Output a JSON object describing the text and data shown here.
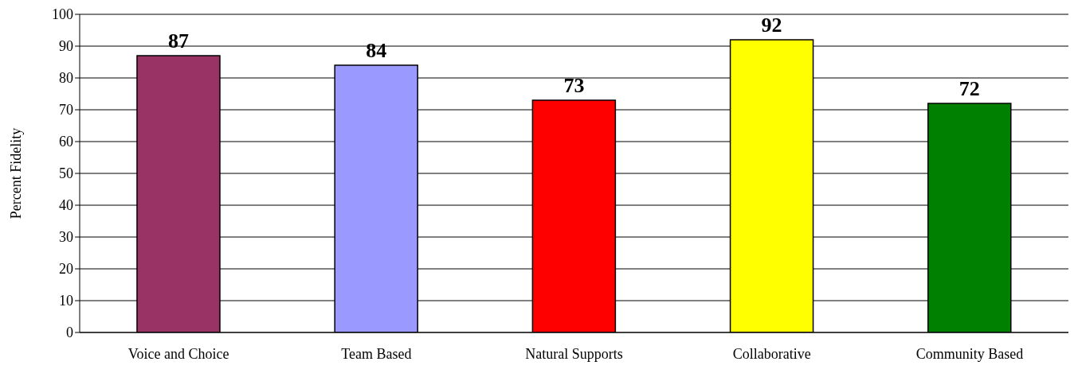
{
  "chart_data": {
    "type": "bar",
    "ylabel": "Percent Fidelity",
    "categories": [
      "Voice and Choice",
      "Team Based",
      "Natural Supports",
      "Collaborative",
      "Community Based"
    ],
    "values": [
      87,
      84,
      73,
      92,
      72
    ],
    "colors": [
      "#993366",
      "#9999ff",
      "#ff0000",
      "#ffff00",
      "#008000"
    ],
    "ylim": [
      0,
      100
    ],
    "yticks": [
      0,
      10,
      20,
      30,
      40,
      50,
      60,
      70,
      80,
      90,
      100
    ],
    "grid": "y",
    "data_labels": true
  }
}
